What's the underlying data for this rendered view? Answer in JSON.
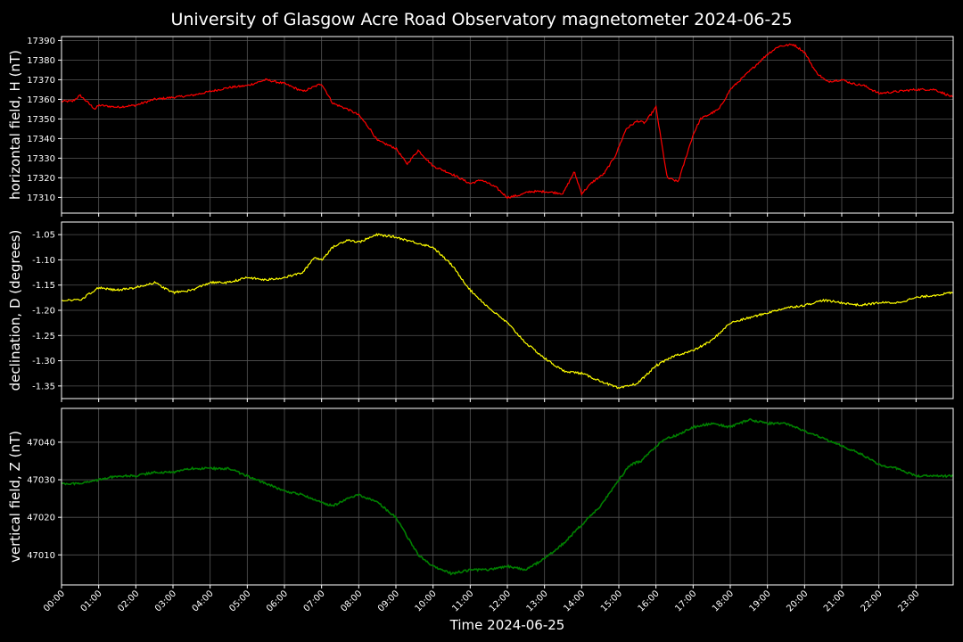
{
  "chart_data": {
    "title": "University of Glasgow Acre Road Observatory magnetometer 2024-06-25",
    "type": "line",
    "xlabel": "Time 2024-06-25",
    "x_ticks": [
      "00:00",
      "01:00",
      "02:00",
      "03:00",
      "04:00",
      "05:00",
      "06:00",
      "07:00",
      "08:00",
      "09:00",
      "10:00",
      "11:00",
      "12:00",
      "13:00",
      "14:00",
      "15:00",
      "16:00",
      "17:00",
      "18:00",
      "19:00",
      "20:00",
      "21:00",
      "22:00",
      "23:00"
    ],
    "xlim_hours": [
      0,
      24
    ],
    "grid": true,
    "panels": [
      {
        "ylabel": "horizontal field, H (nT)",
        "ylim": [
          17302,
          17392
        ],
        "yticks": [
          17310,
          17320,
          17330,
          17340,
          17350,
          17360,
          17370,
          17380,
          17390
        ],
        "tick_decimals": 0,
        "color": "#ff0000",
        "series": {
          "x_hours": [
            0,
            0.3,
            0.5,
            0.9,
            1,
            1.5,
            2,
            2.5,
            3,
            3.5,
            4,
            4.5,
            5,
            5.5,
            6,
            6.5,
            7,
            7.3,
            7.7,
            8,
            8.3,
            8.5,
            9,
            9.3,
            9.6,
            10,
            10.5,
            11,
            11.3,
            11.7,
            12,
            12.3,
            12.6,
            13,
            13.5,
            13.8,
            14,
            14.3,
            14.6,
            14.9,
            15.2,
            15.5,
            15.7,
            16,
            16.3,
            16.6,
            16.8,
            17,
            17.2,
            17.4,
            17.7,
            18,
            18.5,
            19,
            19.3,
            19.7,
            20,
            20.3,
            20.6,
            21,
            21.3,
            21.6,
            22,
            22.5,
            23,
            23.5,
            24
          ],
          "values": [
            17359,
            17359,
            17362,
            17355,
            17357,
            17356,
            17357,
            17360,
            17361,
            17362,
            17364,
            17366,
            17367,
            17370,
            17368,
            17364,
            17368,
            17358,
            17355,
            17352,
            17345,
            17339,
            17335,
            17327,
            17334,
            17326,
            17322,
            17317,
            17319,
            17315,
            17310,
            17311,
            17313,
            17313,
            17312,
            17323,
            17312,
            17318,
            17322,
            17331,
            17345,
            17349,
            17348,
            17356,
            17320,
            17318,
            17330,
            17342,
            17350,
            17352,
            17355,
            17365,
            17374,
            17383,
            17387,
            17388,
            17384,
            17374,
            17369,
            17370,
            17368,
            17367,
            17363,
            17364,
            17365,
            17365,
            17361
          ]
        }
      },
      {
        "ylabel": "declination, D (degrees)",
        "ylim": [
          -1.375,
          -1.025
        ],
        "yticks": [
          -1.35,
          -1.3,
          -1.25,
          -1.2,
          -1.15,
          -1.1,
          -1.05
        ],
        "tick_decimals": 2,
        "color": "#ffff00",
        "series": {
          "x_hours": [
            0,
            0.5,
            1,
            1.5,
            2,
            2.5,
            3,
            3.5,
            4,
            4.5,
            5,
            5.5,
            6,
            6.5,
            6.8,
            7,
            7.3,
            7.7,
            8,
            8.5,
            9,
            9.5,
            10,
            10.5,
            11,
            11.5,
            12,
            12.5,
            13,
            13.5,
            14,
            14.5,
            15,
            15.5,
            16,
            16.5,
            17,
            17.5,
            18,
            18.5,
            19,
            19.5,
            20,
            20.5,
            21,
            21.5,
            22,
            22.5,
            23,
            23.5,
            24
          ],
          "values": [
            -1.18,
            -1.18,
            -1.155,
            -1.16,
            -1.155,
            -1.145,
            -1.165,
            -1.16,
            -1.145,
            -1.145,
            -1.135,
            -1.14,
            -1.135,
            -1.125,
            -1.095,
            -1.1,
            -1.075,
            -1.06,
            -1.065,
            -1.05,
            -1.055,
            -1.065,
            -1.075,
            -1.11,
            -1.16,
            -1.195,
            -1.225,
            -1.265,
            -1.295,
            -1.32,
            -1.325,
            -1.34,
            -1.355,
            -1.345,
            -1.31,
            -1.29,
            -1.28,
            -1.26,
            -1.225,
            -1.215,
            -1.205,
            -1.195,
            -1.19,
            -1.18,
            -1.185,
            -1.19,
            -1.185,
            -1.185,
            -1.175,
            -1.17,
            -1.165
          ]
        }
      },
      {
        "ylabel": "vertical field, Z (nT)",
        "ylim": [
          47002,
          47049
        ],
        "yticks": [
          47010,
          47020,
          47030,
          47040
        ],
        "tick_decimals": 0,
        "color": "#008000",
        "series": {
          "x_hours": [
            0,
            0.5,
            1,
            1.5,
            2,
            2.5,
            3,
            3.5,
            4,
            4.5,
            5,
            5.5,
            6,
            6.5,
            7,
            7.3,
            7.7,
            8,
            8.5,
            9,
            9.3,
            9.6,
            10,
            10.5,
            11,
            11.5,
            12,
            12.5,
            13,
            13.5,
            14,
            14.5,
            15,
            15.3,
            15.6,
            16,
            16.3,
            16.6,
            17,
            17.5,
            18,
            18.5,
            19,
            19.5,
            20,
            20.5,
            21,
            21.5,
            22,
            22.5,
            23,
            23.5,
            24
          ],
          "values": [
            47029,
            47029,
            47030,
            47031,
            47031,
            47032,
            47032,
            47033,
            47033,
            47033,
            47031,
            47029,
            47027,
            47026,
            47024,
            47023,
            47025,
            47026,
            47024,
            47020,
            47015,
            47010,
            47007,
            47005,
            47006,
            47006,
            47007,
            47006,
            47009,
            47013,
            47018,
            47023,
            47030,
            47034,
            47035,
            47039,
            47041,
            47042,
            47044,
            47045,
            47044,
            47046,
            47045,
            47045,
            47043,
            47041,
            47039,
            47037,
            47034,
            47033,
            47031,
            47031,
            47031
          ]
        }
      }
    ]
  }
}
